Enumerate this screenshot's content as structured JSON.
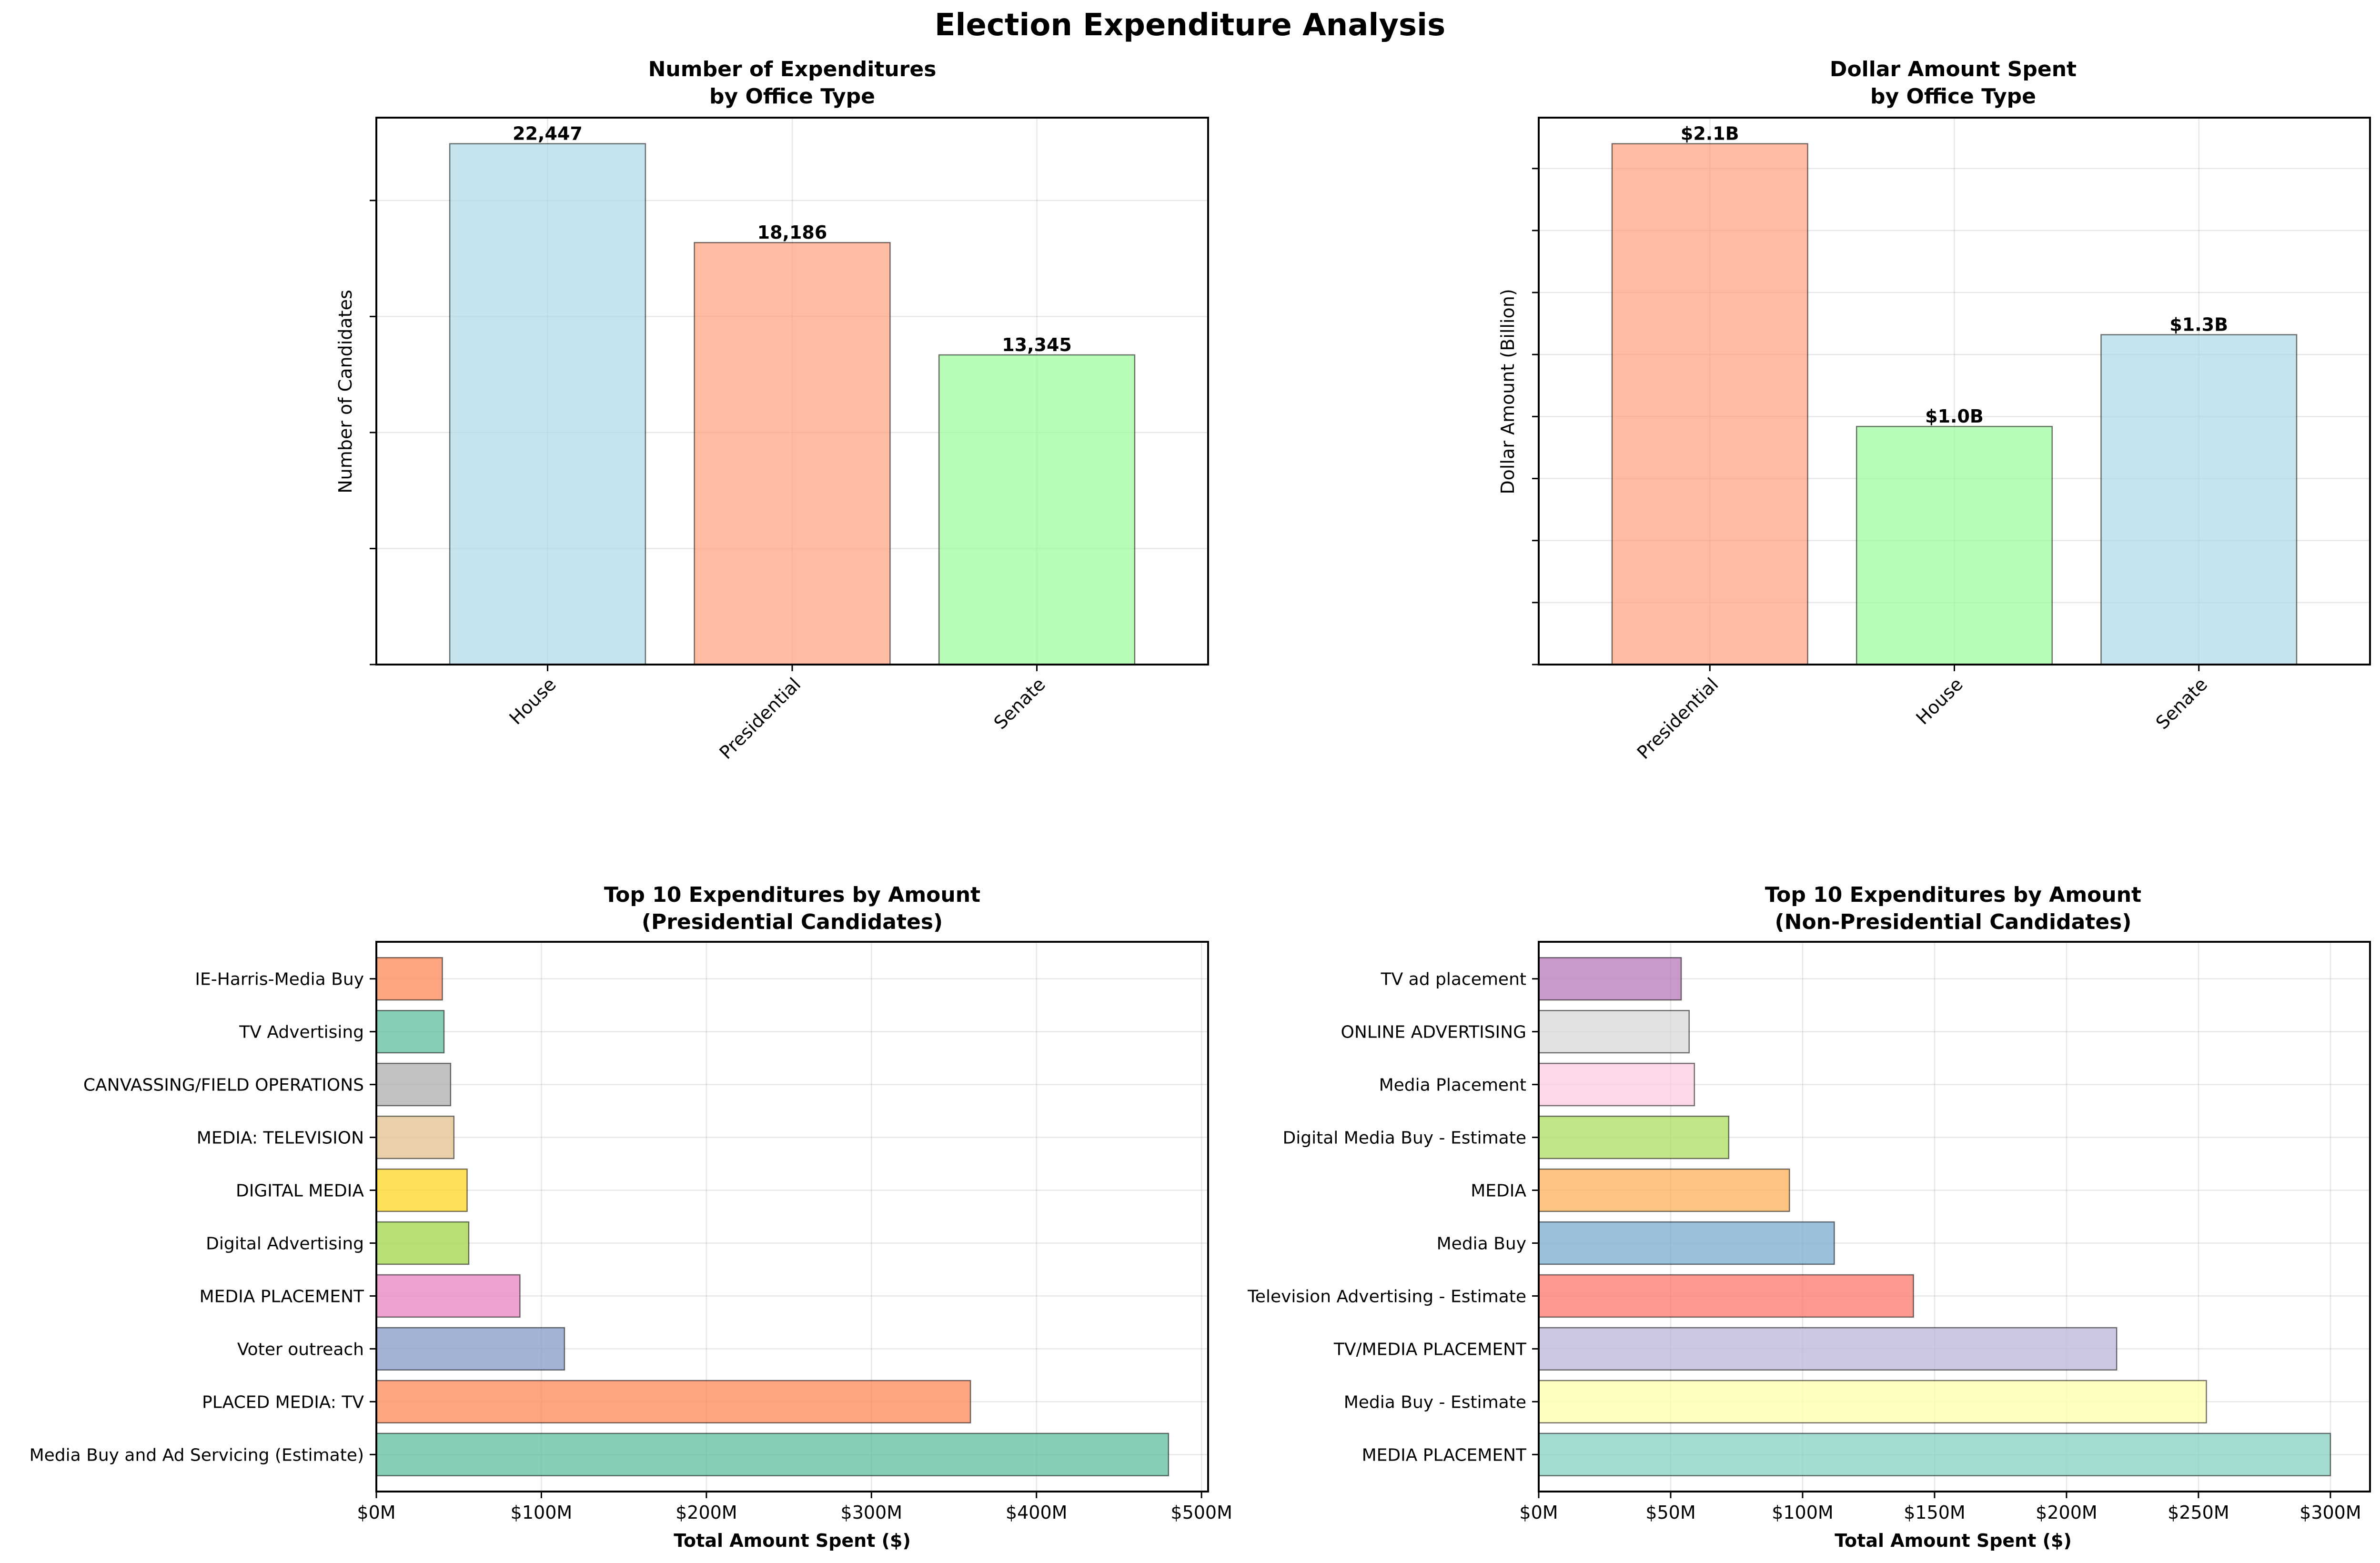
{
  "figure": {
    "suptitle": "Election Expenditure Analysis"
  },
  "chart_data": [
    {
      "id": "count",
      "type": "bar",
      "title_line1": "Number of Expenditures",
      "title_line2": "by Office Type",
      "xlabel": "",
      "ylabel": "Number of Candidates",
      "categories": [
        "House",
        "Presidential",
        "Senate"
      ],
      "values": [
        22447,
        18186,
        13345
      ],
      "value_labels": [
        "22,447",
        "18,186",
        "13,345"
      ],
      "colors": [
        "#add8e6",
        "#ffa07a",
        "#98fb98"
      ],
      "ylim": [
        0,
        23569
      ],
      "ytick_values": [
        0,
        5000,
        10000,
        15000,
        20000
      ],
      "ytick_labels_visible": false,
      "grid": true,
      "tick_rotation": 45
    },
    {
      "id": "amount",
      "type": "bar",
      "title_line1": "Dollar Amount Spent",
      "title_line2": "by Office Type",
      "xlabel": "",
      "ylabel": "Dollar Amount (Billion)",
      "categories": [
        "Presidential",
        "House",
        "Senate"
      ],
      "values": [
        2.1,
        0.96,
        1.33
      ],
      "value_labels": [
        "$2.1B",
        "$1.0B",
        "$1.3B"
      ],
      "colors": [
        "#ffa07a",
        "#98fb98",
        "#add8e6"
      ],
      "ylim": [
        0,
        2.205
      ],
      "ytick_values": [
        0,
        0.25,
        0.5,
        0.75,
        1.0,
        1.25,
        1.5,
        1.75,
        2.0
      ],
      "ytick_labels_visible": false,
      "grid": true,
      "tick_rotation": 45
    },
    {
      "id": "pres",
      "type": "bar",
      "orientation": "horizontal",
      "title_line1": "Top 10 Expenditures by Amount",
      "title_line2": "(Presidential Candidates)",
      "xlabel": "Total Amount Spent ($)",
      "ylabel": "",
      "categories": [
        "Media Buy and Ad Servicing (Estimate)",
        "PLACED MEDIA: TV",
        "Voter outreach",
        "MEDIA PLACEMENT",
        "Digital Advertising",
        "DIGITAL MEDIA",
        "MEDIA: TELEVISION",
        "CANVASSING/FIELD OPERATIONS",
        "TV Advertising",
        "IE-Harris-Media Buy"
      ],
      "values": [
        480,
        360,
        114,
        87,
        56,
        55,
        47,
        45,
        41,
        40
      ],
      "value_unit": "millions USD",
      "colors": [
        "#66c2a5",
        "#fc8d62",
        "#8da0cb",
        "#e78ac3",
        "#a6d854",
        "#ffd92f",
        "#e5c494",
        "#b3b3b3",
        "#66c2a5",
        "#fc8d62"
      ],
      "xlim": [
        0,
        504
      ],
      "xtick_values": [
        0,
        100,
        200,
        300,
        400,
        500
      ],
      "xtick_labels": [
        "$0M",
        "$100M",
        "$200M",
        "$300M",
        "$400M",
        "$500M"
      ],
      "grid": true
    },
    {
      "id": "nonpres",
      "type": "bar",
      "orientation": "horizontal",
      "title_line1": "Top 10 Expenditures by Amount",
      "title_line2": "(Non-Presidential Candidates)",
      "xlabel": "Total Amount Spent ($)",
      "ylabel": "",
      "categories": [
        "MEDIA PLACEMENT",
        "Media Buy - Estimate",
        "TV/MEDIA PLACEMENT",
        "Television Advertising - Estimate",
        "Media Buy",
        "MEDIA",
        "Digital Media Buy - Estimate",
        "Media Placement",
        "ONLINE ADVERTISING",
        "TV ad placement"
      ],
      "values": [
        300,
        253,
        219,
        142,
        112,
        95,
        72,
        59,
        57,
        54
      ],
      "value_unit": "millions USD",
      "colors": [
        "#8dd3c7",
        "#ffffb3",
        "#bebada",
        "#fb8072",
        "#80b1d3",
        "#fdb462",
        "#b3de69",
        "#fccde5",
        "#d9d9d9",
        "#bc80bd"
      ],
      "xlim": [
        0,
        315
      ],
      "xtick_values": [
        0,
        50,
        100,
        150,
        200,
        250,
        300
      ],
      "xtick_labels": [
        "$0M",
        "$50M",
        "$100M",
        "$150M",
        "$200M",
        "$250M",
        "$300M"
      ],
      "grid": true
    }
  ]
}
